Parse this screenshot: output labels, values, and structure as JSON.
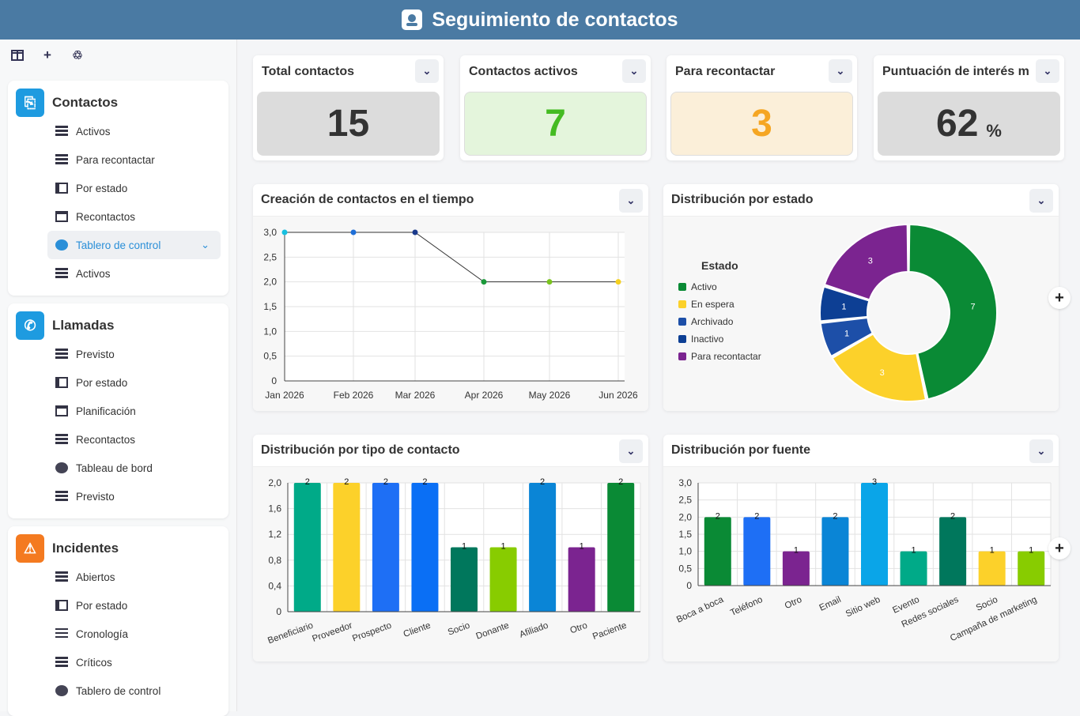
{
  "header": {
    "title": "Seguimiento de contactos"
  },
  "toolbar": {
    "icons": [
      "columns-icon",
      "plus-icon",
      "refresh-icon"
    ],
    "plus": "+",
    "refresh": "♲"
  },
  "sidebar": {
    "contactos": {
      "title": "Contactos",
      "color": "#1e9be0",
      "items": [
        {
          "label": "Activos",
          "icon": "list"
        },
        {
          "label": "Para recontactar",
          "icon": "list"
        },
        {
          "label": "Por estado",
          "icon": "book"
        },
        {
          "label": "Recontactos",
          "icon": "cal"
        },
        {
          "label": "Tablero de control",
          "icon": "gauge",
          "active": true
        },
        {
          "label": "Activos",
          "icon": "list"
        }
      ]
    },
    "llamadas": {
      "title": "Llamadas",
      "color": "#1e9be0",
      "items": [
        {
          "label": "Previsto",
          "icon": "list"
        },
        {
          "label": "Por estado",
          "icon": "book"
        },
        {
          "label": "Planificación",
          "icon": "cal"
        },
        {
          "label": "Recontactos",
          "icon": "list"
        },
        {
          "label": "Tableau de bord",
          "icon": "gauge"
        },
        {
          "label": "Previsto",
          "icon": "list"
        }
      ]
    },
    "incidentes": {
      "title": "Incidentes",
      "color": "#f47a20",
      "items": [
        {
          "label": "Abiertos",
          "icon": "list"
        },
        {
          "label": "Por estado",
          "icon": "book"
        },
        {
          "label": "Cronología",
          "icon": "lines"
        },
        {
          "label": "Críticos",
          "icon": "list"
        },
        {
          "label": "Tablero de control",
          "icon": "gauge"
        }
      ]
    }
  },
  "kpis": [
    {
      "title": "Total contactos",
      "value": "15",
      "unit": "",
      "bg": "#dcdcdc",
      "color": "#333333"
    },
    {
      "title": "Contactos activos",
      "value": "7",
      "unit": "",
      "bg": "#e4f5dc",
      "color": "#44bb22"
    },
    {
      "title": "Para recontactar",
      "value": "3",
      "unit": "",
      "bg": "#fbefd9",
      "color": "#f5a623"
    },
    {
      "title": "Puntuación de interés me",
      "value": "62",
      "unit": "%",
      "bg": "#dcdcdc",
      "color": "#333333"
    }
  ],
  "panels": {
    "timeline": "Creación de contactos en el tiempo",
    "estado": "Distribución por estado",
    "tipo": "Distribución por tipo de contacto",
    "fuente": "Distribución por fuente"
  },
  "chart_data": [
    {
      "type": "line",
      "title": "Creación de contactos en el tiempo",
      "x": [
        "Jan 2026",
        "Feb 2026",
        "Mar 2026",
        "Apr 2026",
        "May 2026",
        "Jun 2026"
      ],
      "series": [
        {
          "values": [
            3,
            3,
            3,
            2,
            2,
            2
          ]
        }
      ],
      "point_colors": [
        "#17c0e0",
        "#1e6fd8",
        "#1a3a8c",
        "#1a9a3a",
        "#7ac41e",
        "#f5d020"
      ],
      "ylim": [
        0,
        3
      ],
      "yticks": [
        "0",
        "0,5",
        "1,0",
        "1,5",
        "2,0",
        "2,5",
        "3,0"
      ],
      "grid": true
    },
    {
      "type": "pie",
      "title": "Distribución por estado",
      "legend_title": "Estado",
      "legend_position": "left",
      "categories": [
        "Activo",
        "En espera",
        "Archivado",
        "Inactivo",
        "Para recontactar"
      ],
      "values": [
        7,
        3,
        1,
        1,
        3
      ],
      "colors": [
        "#0a8a35",
        "#fcd12a",
        "#1d4fa8",
        "#0d3f94",
        "#7b2490"
      ]
    },
    {
      "type": "bar",
      "title": "Distribución por tipo de contacto",
      "categories": [
        "Beneficiario",
        "Proveedor",
        "Prospecto",
        "Cliente",
        "Socio",
        "Donante",
        "Afiliado",
        "Otro",
        "Paciente"
      ],
      "values": [
        2,
        2,
        2,
        2,
        1,
        1,
        2,
        1,
        2
      ],
      "colors": [
        "#00aa88",
        "#fcd12a",
        "#1e6ff5",
        "#0a6ff5",
        "#00775c",
        "#88cc00",
        "#0a85d6",
        "#7b2490",
        "#0a8a35"
      ],
      "ylim": [
        0,
        2
      ],
      "yticks": [
        "0",
        "0,4",
        "0,8",
        "1,2",
        "1,6",
        "2,0"
      ],
      "grid": true
    },
    {
      "type": "bar",
      "title": "Distribución por fuente",
      "categories": [
        "Boca a boca",
        "Teléfono",
        "Otro",
        "Email",
        "Sitio web",
        "Evento",
        "Redes sociales",
        "Socio",
        "Campaña de marketing"
      ],
      "values": [
        2,
        2,
        1,
        2,
        3,
        1,
        2,
        1,
        1
      ],
      "colors": [
        "#0a8a35",
        "#1e6ff5",
        "#7b2490",
        "#0a85d6",
        "#0aa5e8",
        "#00aa88",
        "#00775c",
        "#fcd12a",
        "#88cc00"
      ],
      "ylim": [
        0,
        3
      ],
      "yticks": [
        "0",
        "0,5",
        "1,0",
        "1,5",
        "2,0",
        "2,5",
        "3,0"
      ],
      "grid": true
    }
  ],
  "expand_label": "+"
}
